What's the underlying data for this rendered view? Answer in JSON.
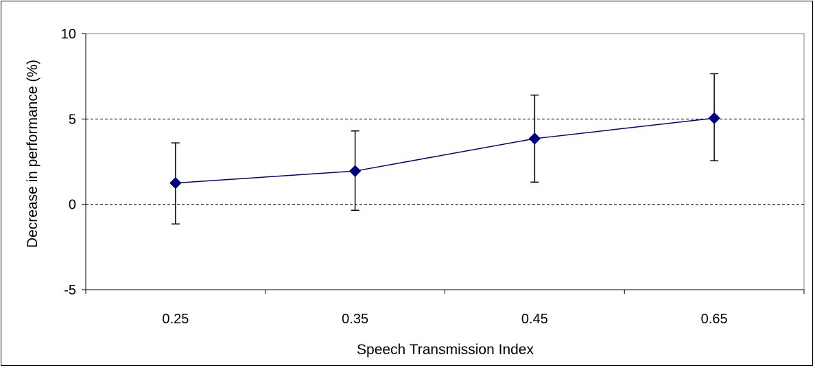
{
  "chart_data": {
    "type": "line",
    "xlabel": "Speech Transmission Index",
    "ylabel": "Decrease in performance (%)",
    "categories": [
      "0.25",
      "0.35",
      "0.45",
      "0.65"
    ],
    "series": [
      {
        "values": [
          1.25,
          1.95,
          3.85,
          5.05
        ],
        "error_low": [
          -1.15,
          -0.35,
          1.3,
          2.55
        ],
        "error_high": [
          3.6,
          4.3,
          6.4,
          7.65
        ],
        "color": "#000080",
        "marker": "diamond"
      }
    ],
    "ylim": [
      -5,
      10
    ],
    "yticks": [
      -5,
      0,
      5,
      10
    ],
    "ytick_labels": [
      "-5",
      "0",
      "5",
      "10"
    ],
    "gridlines": [
      0,
      5
    ],
    "gridline_style": "dashed",
    "legend": "none"
  }
}
